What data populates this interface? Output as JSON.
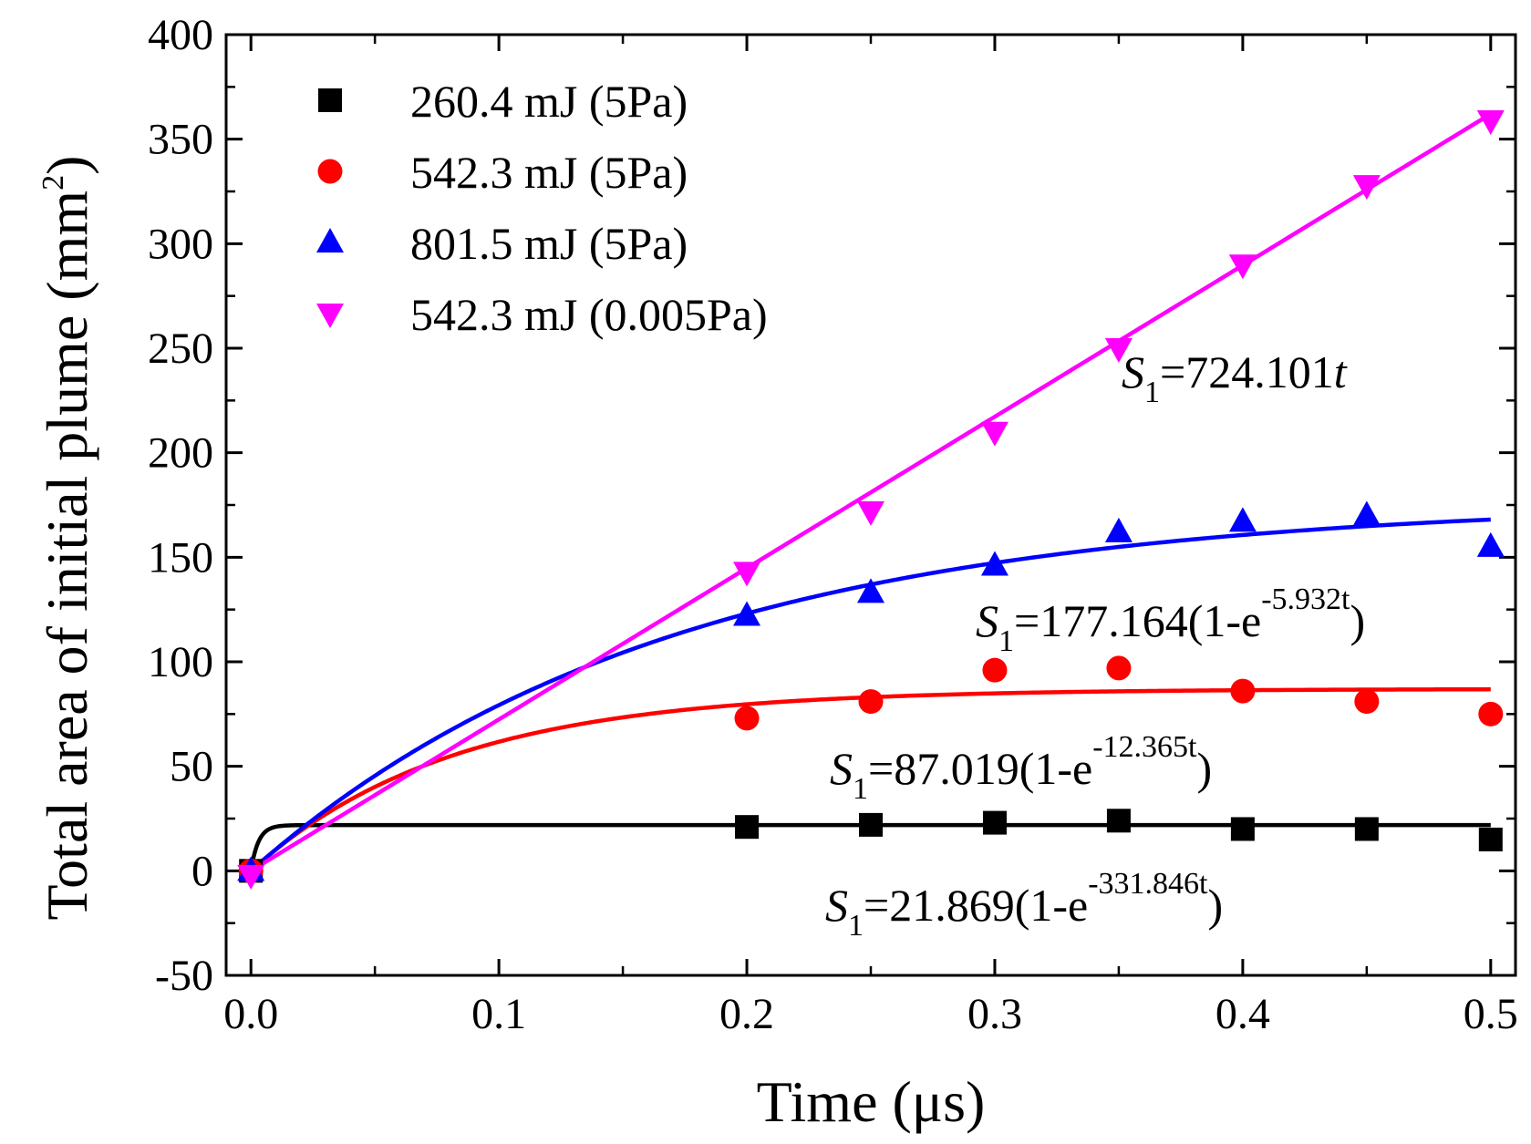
{
  "chart_data": {
    "type": "scatter",
    "xlabel": "Time (μs)",
    "ylabel_main": "Total area of initial plume (mm",
    "ylabel_sup": "2",
    "ylabel_close": ")",
    "xlim": [
      -0.01,
      0.51
    ],
    "ylim": [
      -50,
      400
    ],
    "xticks": [
      0.0,
      0.1,
      0.2,
      0.3,
      0.4,
      0.5
    ],
    "xtick_labels": [
      "0.0",
      "0.1",
      "0.2",
      "0.3",
      "0.4",
      "0.5"
    ],
    "yticks": [
      -50,
      0,
      50,
      100,
      150,
      200,
      250,
      300,
      350,
      400
    ],
    "ytick_labels": [
      "-50",
      "0",
      "50",
      "100",
      "150",
      "200",
      "250",
      "300",
      "350",
      "400"
    ],
    "legend_position": "top-left",
    "series": [
      {
        "name": "260.4 mJ (5Pa)",
        "color": "#000000",
        "marker": "square",
        "x": [
          0,
          0.2,
          0.25,
          0.3,
          0.35,
          0.4,
          0.45,
          0.5
        ],
        "y": [
          0,
          21,
          22,
          23,
          24,
          20,
          20,
          15
        ],
        "fit": {
          "type": "exp",
          "a": 21.869,
          "b": 331.846
        }
      },
      {
        "name": "542.3 mJ (5Pa)",
        "color": "#ff0000",
        "marker": "circle",
        "x": [
          0,
          0.2,
          0.25,
          0.3,
          0.35,
          0.4,
          0.45,
          0.5
        ],
        "y": [
          0,
          73,
          81,
          96,
          97,
          86,
          81,
          75
        ],
        "fit": {
          "type": "exp",
          "a": 87.019,
          "b": 12.365
        }
      },
      {
        "name": "801.5 mJ (5Pa)",
        "color": "#0000ff",
        "marker": "triangle-up",
        "x": [
          0,
          0.2,
          0.25,
          0.3,
          0.35,
          0.4,
          0.45,
          0.5
        ],
        "y": [
          0,
          122,
          133,
          146,
          162,
          167,
          170,
          155
        ],
        "fit": {
          "type": "exp",
          "a": 177.164,
          "b": 5.932
        }
      },
      {
        "name": "542.3 mJ (0.005Pa)",
        "color": "#ff00ff",
        "marker": "triangle-down",
        "x": [
          0,
          0.2,
          0.25,
          0.3,
          0.35,
          0.4,
          0.45,
          0.5
        ],
        "y": [
          -2,
          143,
          172,
          210,
          250,
          290,
          328,
          359
        ],
        "fit": {
          "type": "linear",
          "a": 724.101
        }
      }
    ],
    "annotations": [
      {
        "sym": "S",
        "sub": "1",
        "mid": "=724.101",
        "sup": "",
        "tail": "t"
      },
      {
        "sym": "S",
        "sub": "1",
        "mid": "=177.164(1-e",
        "sup": "-5.932t",
        "tail": ")"
      },
      {
        "sym": "S",
        "sub": "1",
        "mid": "=87.019(1-e",
        "sup": "-12.365t",
        "tail": ")"
      },
      {
        "sym": "S",
        "sub": "1",
        "mid": "=21.869(1-e",
        "sup": "-331.846t",
        "tail": ")"
      }
    ]
  }
}
